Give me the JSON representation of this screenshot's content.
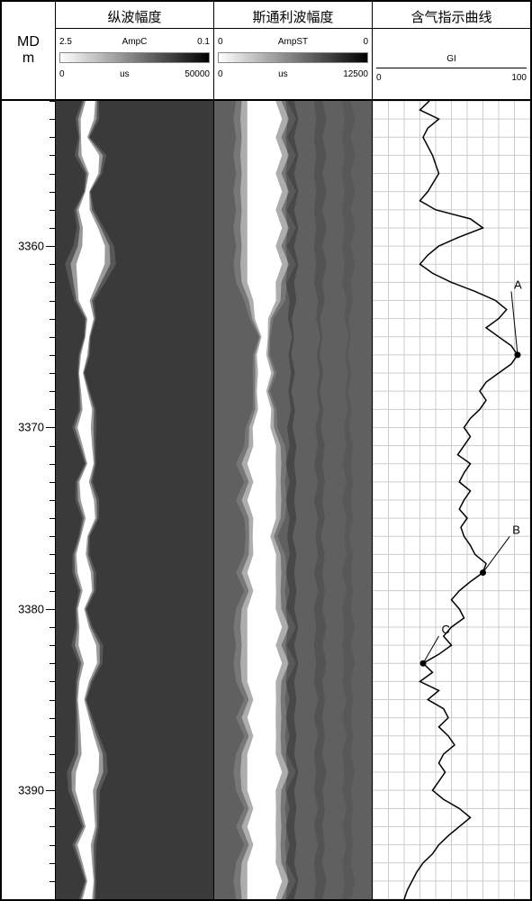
{
  "depth": {
    "header_line1": "MD",
    "header_line2": "m",
    "min": 3352,
    "max": 3396,
    "major_ticks": [
      3360,
      3370,
      3380,
      3390
    ],
    "minor_step": 1
  },
  "tracks": {
    "ampc": {
      "title": "纵波幅度",
      "scale_label": "AmpC",
      "scale_left": "2.5",
      "scale_right": "0.1",
      "x_unit": "us",
      "x_min": "0",
      "x_max": "50000",
      "gradient_from": "#ffffff",
      "gradient_to": "#000000",
      "background": "#3a3a3a",
      "waveform_center": 0.22,
      "data": [
        {
          "d": 3352,
          "c": 0.22,
          "w": 0.1,
          "i": 0.6
        },
        {
          "d": 3353,
          "c": 0.2,
          "w": 0.12,
          "i": 0.7
        },
        {
          "d": 3354,
          "c": 0.18,
          "w": 0.08,
          "i": 0.5
        },
        {
          "d": 3355,
          "c": 0.22,
          "w": 0.14,
          "i": 0.8
        },
        {
          "d": 3356,
          "c": 0.24,
          "w": 0.1,
          "i": 0.6
        },
        {
          "d": 3357,
          "c": 0.2,
          "w": 0.06,
          "i": 0.4
        },
        {
          "d": 3358,
          "c": 0.18,
          "w": 0.1,
          "i": 0.7
        },
        {
          "d": 3359,
          "c": 0.22,
          "w": 0.12,
          "i": 0.8
        },
        {
          "d": 3360,
          "c": 0.24,
          "w": 0.16,
          "i": 0.9
        },
        {
          "d": 3361,
          "c": 0.22,
          "w": 0.18,
          "i": 1.0
        },
        {
          "d": 3362,
          "c": 0.2,
          "w": 0.14,
          "i": 0.9
        },
        {
          "d": 3363,
          "c": 0.18,
          "w": 0.1,
          "i": 0.7
        },
        {
          "d": 3364,
          "c": 0.22,
          "w": 0.08,
          "i": 0.5
        },
        {
          "d": 3365,
          "c": 0.2,
          "w": 0.06,
          "i": 0.4
        },
        {
          "d": 3366,
          "c": 0.18,
          "w": 0.08,
          "i": 0.5
        },
        {
          "d": 3367,
          "c": 0.16,
          "w": 0.06,
          "i": 0.4
        },
        {
          "d": 3368,
          "c": 0.18,
          "w": 0.08,
          "i": 0.5
        },
        {
          "d": 3369,
          "c": 0.2,
          "w": 0.1,
          "i": 0.6
        },
        {
          "d": 3370,
          "c": 0.18,
          "w": 0.12,
          "i": 0.7
        },
        {
          "d": 3371,
          "c": 0.2,
          "w": 0.1,
          "i": 0.6
        },
        {
          "d": 3372,
          "c": 0.22,
          "w": 0.08,
          "i": 0.5
        },
        {
          "d": 3373,
          "c": 0.18,
          "w": 0.1,
          "i": 0.6
        },
        {
          "d": 3374,
          "c": 0.2,
          "w": 0.12,
          "i": 0.7
        },
        {
          "d": 3375,
          "c": 0.22,
          "w": 0.1,
          "i": 0.6
        },
        {
          "d": 3376,
          "c": 0.18,
          "w": 0.08,
          "i": 0.5
        },
        {
          "d": 3377,
          "c": 0.16,
          "w": 0.1,
          "i": 0.6
        },
        {
          "d": 3378,
          "c": 0.18,
          "w": 0.12,
          "i": 0.7
        },
        {
          "d": 3379,
          "c": 0.2,
          "w": 0.1,
          "i": 0.6
        },
        {
          "d": 3380,
          "c": 0.16,
          "w": 0.08,
          "i": 0.5
        },
        {
          "d": 3381,
          "c": 0.18,
          "w": 0.1,
          "i": 0.6
        },
        {
          "d": 3382,
          "c": 0.2,
          "w": 0.14,
          "i": 0.8
        },
        {
          "d": 3383,
          "c": 0.22,
          "w": 0.12,
          "i": 0.7
        },
        {
          "d": 3384,
          "c": 0.18,
          "w": 0.1,
          "i": 0.6
        },
        {
          "d": 3385,
          "c": 0.16,
          "w": 0.08,
          "i": 0.5
        },
        {
          "d": 3386,
          "c": 0.18,
          "w": 0.1,
          "i": 0.6
        },
        {
          "d": 3387,
          "c": 0.2,
          "w": 0.12,
          "i": 0.7
        },
        {
          "d": 3388,
          "c": 0.22,
          "w": 0.14,
          "i": 0.8
        },
        {
          "d": 3389,
          "c": 0.2,
          "w": 0.16,
          "i": 0.9
        },
        {
          "d": 3390,
          "c": 0.18,
          "w": 0.14,
          "i": 0.8
        },
        {
          "d": 3391,
          "c": 0.2,
          "w": 0.12,
          "i": 0.7
        },
        {
          "d": 3392,
          "c": 0.22,
          "w": 0.1,
          "i": 0.6
        },
        {
          "d": 3393,
          "c": 0.18,
          "w": 0.12,
          "i": 0.7
        },
        {
          "d": 3394,
          "c": 0.2,
          "w": 0.1,
          "i": 0.6
        },
        {
          "d": 3395,
          "c": 0.22,
          "w": 0.08,
          "i": 0.5
        },
        {
          "d": 3396,
          "c": 0.2,
          "w": 0.1,
          "i": 0.6
        }
      ]
    },
    "ampst": {
      "title": "斯通利波幅度",
      "scale_label": "AmpST",
      "scale_left": "0",
      "scale_right": "0",
      "x_unit": "us",
      "x_min": "0",
      "x_max": "12500",
      "gradient_from": "#ffffff",
      "gradient_to": "#000000",
      "background": "#606060",
      "waveform_center": 0.32,
      "data": [
        {
          "d": 3352,
          "c": 0.3,
          "w": 0.2,
          "i": 0.9
        },
        {
          "d": 3353,
          "c": 0.32,
          "w": 0.22,
          "i": 1.0
        },
        {
          "d": 3354,
          "c": 0.3,
          "w": 0.2,
          "i": 0.9
        },
        {
          "d": 3355,
          "c": 0.32,
          "w": 0.22,
          "i": 1.0
        },
        {
          "d": 3356,
          "c": 0.3,
          "w": 0.2,
          "i": 0.9
        },
        {
          "d": 3357,
          "c": 0.32,
          "w": 0.22,
          "i": 1.0
        },
        {
          "d": 3358,
          "c": 0.3,
          "w": 0.2,
          "i": 0.9
        },
        {
          "d": 3359,
          "c": 0.32,
          "w": 0.22,
          "i": 1.0
        },
        {
          "d": 3360,
          "c": 0.3,
          "w": 0.2,
          "i": 0.9
        },
        {
          "d": 3361,
          "c": 0.32,
          "w": 0.22,
          "i": 1.0
        },
        {
          "d": 3362,
          "c": 0.3,
          "w": 0.2,
          "i": 0.9
        },
        {
          "d": 3363,
          "c": 0.32,
          "w": 0.18,
          "i": 0.8
        },
        {
          "d": 3364,
          "c": 0.3,
          "w": 0.14,
          "i": 0.6
        },
        {
          "d": 3365,
          "c": 0.32,
          "w": 0.1,
          "i": 0.4
        },
        {
          "d": 3366,
          "c": 0.3,
          "w": 0.12,
          "i": 0.5
        },
        {
          "d": 3367,
          "c": 0.32,
          "w": 0.14,
          "i": 0.6
        },
        {
          "d": 3368,
          "c": 0.3,
          "w": 0.12,
          "i": 0.5
        },
        {
          "d": 3369,
          "c": 0.32,
          "w": 0.14,
          "i": 0.6
        },
        {
          "d": 3370,
          "c": 0.3,
          "w": 0.16,
          "i": 0.7
        },
        {
          "d": 3371,
          "c": 0.32,
          "w": 0.18,
          "i": 0.8
        },
        {
          "d": 3372,
          "c": 0.3,
          "w": 0.2,
          "i": 0.9
        },
        {
          "d": 3373,
          "c": 0.32,
          "w": 0.18,
          "i": 0.8
        },
        {
          "d": 3374,
          "c": 0.3,
          "w": 0.2,
          "i": 0.9
        },
        {
          "d": 3375,
          "c": 0.32,
          "w": 0.18,
          "i": 0.8
        },
        {
          "d": 3376,
          "c": 0.3,
          "w": 0.16,
          "i": 0.7
        },
        {
          "d": 3377,
          "c": 0.32,
          "w": 0.18,
          "i": 0.8
        },
        {
          "d": 3378,
          "c": 0.3,
          "w": 0.2,
          "i": 0.9
        },
        {
          "d": 3379,
          "c": 0.32,
          "w": 0.18,
          "i": 0.8
        },
        {
          "d": 3380,
          "c": 0.3,
          "w": 0.2,
          "i": 0.9
        },
        {
          "d": 3381,
          "c": 0.32,
          "w": 0.22,
          "i": 1.0
        },
        {
          "d": 3382,
          "c": 0.3,
          "w": 0.2,
          "i": 0.9
        },
        {
          "d": 3383,
          "c": 0.32,
          "w": 0.22,
          "i": 1.0
        },
        {
          "d": 3384,
          "c": 0.3,
          "w": 0.2,
          "i": 0.9
        },
        {
          "d": 3385,
          "c": 0.32,
          "w": 0.18,
          "i": 0.8
        },
        {
          "d": 3386,
          "c": 0.3,
          "w": 0.2,
          "i": 0.9
        },
        {
          "d": 3387,
          "c": 0.32,
          "w": 0.18,
          "i": 0.8
        },
        {
          "d": 3388,
          "c": 0.3,
          "w": 0.2,
          "i": 0.9
        },
        {
          "d": 3389,
          "c": 0.32,
          "w": 0.22,
          "i": 1.0
        },
        {
          "d": 3390,
          "c": 0.3,
          "w": 0.2,
          "i": 0.9
        },
        {
          "d": 3391,
          "c": 0.32,
          "w": 0.18,
          "i": 0.8
        },
        {
          "d": 3392,
          "c": 0.3,
          "w": 0.2,
          "i": 0.9
        },
        {
          "d": 3393,
          "c": 0.32,
          "w": 0.18,
          "i": 0.8
        },
        {
          "d": 3394,
          "c": 0.3,
          "w": 0.2,
          "i": 0.9
        },
        {
          "d": 3395,
          "c": 0.32,
          "w": 0.22,
          "i": 1.0
        },
        {
          "d": 3396,
          "c": 0.3,
          "w": 0.2,
          "i": 0.9
        }
      ]
    },
    "gi": {
      "title": "含气指示曲线",
      "scale_label": "GI",
      "x_min": "0",
      "x_max": "100",
      "grid_color": "#cccccc",
      "grid_v_step": 10,
      "grid_h_step": 1,
      "curve_color": "#000000",
      "data": [
        {
          "d": 3352,
          "v": 36
        },
        {
          "d": 3352.5,
          "v": 30
        },
        {
          "d": 3353,
          "v": 42
        },
        {
          "d": 3353.5,
          "v": 35
        },
        {
          "d": 3354,
          "v": 32
        },
        {
          "d": 3355,
          "v": 38
        },
        {
          "d": 3356,
          "v": 42
        },
        {
          "d": 3357,
          "v": 35
        },
        {
          "d": 3357.5,
          "v": 30
        },
        {
          "d": 3358,
          "v": 40
        },
        {
          "d": 3358.5,
          "v": 62
        },
        {
          "d": 3359,
          "v": 70
        },
        {
          "d": 3359.5,
          "v": 55
        },
        {
          "d": 3360,
          "v": 42
        },
        {
          "d": 3360.5,
          "v": 35
        },
        {
          "d": 3361,
          "v": 30
        },
        {
          "d": 3361.5,
          "v": 38
        },
        {
          "d": 3362,
          "v": 50
        },
        {
          "d": 3362.5,
          "v": 65
        },
        {
          "d": 3363,
          "v": 78
        },
        {
          "d": 3363.5,
          "v": 85
        },
        {
          "d": 3364,
          "v": 80
        },
        {
          "d": 3364.5,
          "v": 72
        },
        {
          "d": 3365,
          "v": 80
        },
        {
          "d": 3365.5,
          "v": 88
        },
        {
          "d": 3366,
          "v": 92
        },
        {
          "d": 3366.5,
          "v": 88
        },
        {
          "d": 3367,
          "v": 80
        },
        {
          "d": 3367.5,
          "v": 72
        },
        {
          "d": 3368,
          "v": 68
        },
        {
          "d": 3368.5,
          "v": 72
        },
        {
          "d": 3369,
          "v": 68
        },
        {
          "d": 3369.5,
          "v": 62
        },
        {
          "d": 3370,
          "v": 58
        },
        {
          "d": 3370.5,
          "v": 62
        },
        {
          "d": 3371,
          "v": 58
        },
        {
          "d": 3371.5,
          "v": 54
        },
        {
          "d": 3372,
          "v": 62
        },
        {
          "d": 3372.5,
          "v": 58
        },
        {
          "d": 3373,
          "v": 55
        },
        {
          "d": 3373.5,
          "v": 62
        },
        {
          "d": 3374,
          "v": 58
        },
        {
          "d": 3374.5,
          "v": 55
        },
        {
          "d": 3375,
          "v": 60
        },
        {
          "d": 3375.5,
          "v": 56
        },
        {
          "d": 3376,
          "v": 58
        },
        {
          "d": 3376.5,
          "v": 62
        },
        {
          "d": 3377,
          "v": 65
        },
        {
          "d": 3377.5,
          "v": 72
        },
        {
          "d": 3378,
          "v": 70
        },
        {
          "d": 3378.5,
          "v": 62
        },
        {
          "d": 3379,
          "v": 55
        },
        {
          "d": 3379.5,
          "v": 50
        },
        {
          "d": 3380,
          "v": 55
        },
        {
          "d": 3380.5,
          "v": 58
        },
        {
          "d": 3381,
          "v": 50
        },
        {
          "d": 3381.5,
          "v": 45
        },
        {
          "d": 3382,
          "v": 50
        },
        {
          "d": 3382.5,
          "v": 42
        },
        {
          "d": 3383,
          "v": 32
        },
        {
          "d": 3383.5,
          "v": 38
        },
        {
          "d": 3384,
          "v": 30
        },
        {
          "d": 3384.5,
          "v": 42
        },
        {
          "d": 3385,
          "v": 35
        },
        {
          "d": 3385.5,
          "v": 45
        },
        {
          "d": 3386,
          "v": 48
        },
        {
          "d": 3386.5,
          "v": 42
        },
        {
          "d": 3387,
          "v": 48
        },
        {
          "d": 3387.5,
          "v": 52
        },
        {
          "d": 3388,
          "v": 45
        },
        {
          "d": 3388.5,
          "v": 42
        },
        {
          "d": 3389,
          "v": 46
        },
        {
          "d": 3389.5,
          "v": 42
        },
        {
          "d": 3390,
          "v": 38
        },
        {
          "d": 3390.5,
          "v": 45
        },
        {
          "d": 3391,
          "v": 55
        },
        {
          "d": 3391.5,
          "v": 62
        },
        {
          "d": 3392,
          "v": 55
        },
        {
          "d": 3392.5,
          "v": 48
        },
        {
          "d": 3393,
          "v": 42
        },
        {
          "d": 3393.5,
          "v": 38
        },
        {
          "d": 3394,
          "v": 32
        },
        {
          "d": 3394.5,
          "v": 28
        },
        {
          "d": 3395,
          "v": 25
        },
        {
          "d": 3395.5,
          "v": 22
        },
        {
          "d": 3396,
          "v": 20
        }
      ],
      "markers": [
        {
          "label": "A",
          "d": 3366,
          "v": 92,
          "label_d": 3362.5,
          "label_v": 88
        },
        {
          "label": "B",
          "d": 3378,
          "v": 70,
          "label_d": 3376,
          "label_v": 87
        },
        {
          "label": "C",
          "d": 3383,
          "v": 32,
          "label_d": 3381.5,
          "label_v": 42
        }
      ]
    }
  }
}
